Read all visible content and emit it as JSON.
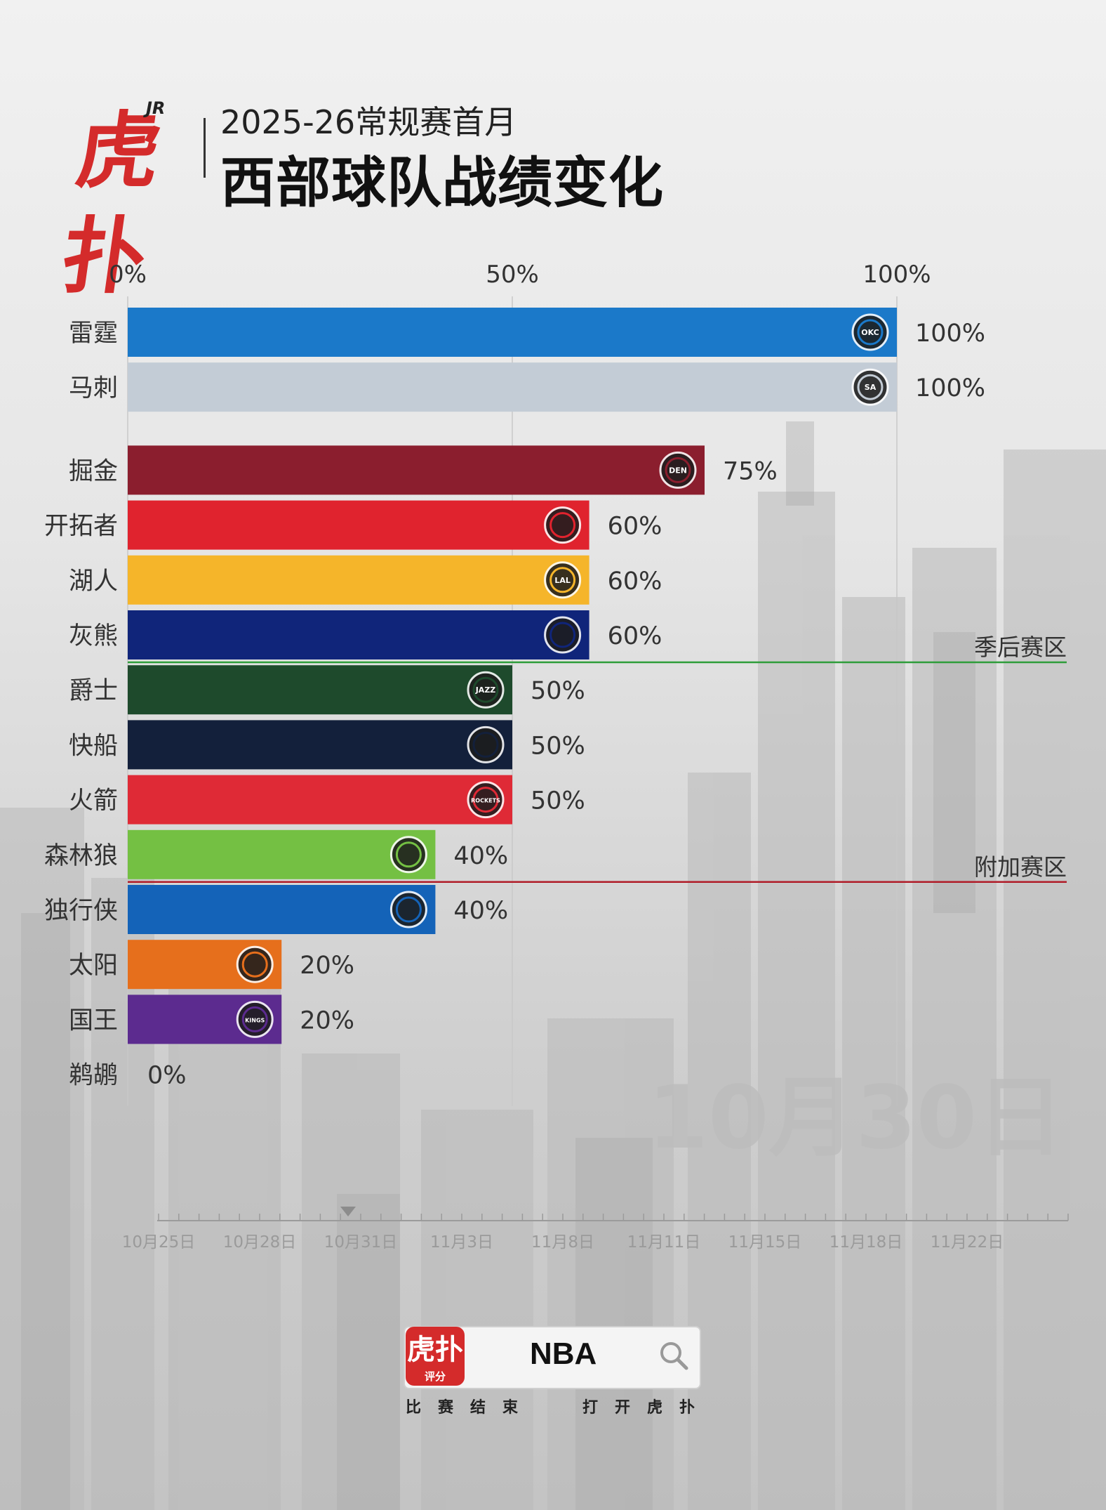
{
  "header": {
    "logo_text": "虎扑",
    "logo_badge": "JR",
    "subtitle": "2025-26常规赛首月",
    "title": "西部球队战绩变化"
  },
  "colors": {
    "brand_red": "#d42b2b",
    "playoff_line": "#2e9d3a",
    "playin_line": "#b01c28"
  },
  "chart_data": {
    "type": "bar",
    "orientation": "horizontal",
    "unit": "%",
    "xlim": [
      0,
      100
    ],
    "x_ticks": [
      "0%",
      "50%",
      "100%"
    ],
    "categories": [
      "雷霆",
      "马刺",
      "掘金",
      "开拓者",
      "湖人",
      "灰熊",
      "爵士",
      "快船",
      "火箭",
      "森林狼",
      "独行侠",
      "太阳",
      "国王",
      "鹈鹕"
    ],
    "values": [
      100,
      100,
      75,
      60,
      60,
      60,
      50,
      50,
      50,
      40,
      40,
      20,
      20,
      0
    ],
    "value_labels": [
      "100%",
      "100%",
      "75%",
      "60%",
      "60%",
      "60%",
      "50%",
      "50%",
      "50%",
      "40%",
      "40%",
      "20%",
      "20%",
      "0%"
    ],
    "colors": [
      "#1b79c9",
      "#c3ccd6",
      "#8b1e2e",
      "#e0232e",
      "#f5b52a",
      "#10257a",
      "#1e4a2c",
      "#13203b",
      "#df2a36",
      "#74c043",
      "#1463b8",
      "#e66f1c",
      "#5c2b8f",
      "#c0c0c0"
    ],
    "team_logo_icons": [
      "okc-logo-icon",
      "spurs-logo-icon",
      "nuggets-logo-icon",
      "blazers-logo-icon",
      "lakers-logo-icon",
      "grizzlies-logo-icon",
      "jazz-logo-icon",
      "clippers-logo-icon",
      "rockets-logo-icon",
      "wolves-logo-icon",
      "mavs-logo-icon",
      "suns-logo-icon",
      "kings-logo-icon",
      "pelicans-logo-icon"
    ],
    "logo_texts": [
      "OKC",
      "SA",
      "DEN",
      "",
      "LAL",
      "",
      "JAZZ",
      "",
      "ROCKETS",
      "",
      "",
      "",
      "KINGS",
      ""
    ],
    "zone_lines": [
      {
        "label": "季后赛区",
        "after_rank": 6,
        "color": "#2e9d3a"
      },
      {
        "label": "附加赛区",
        "after_rank": 10,
        "color": "#b01c28"
      }
    ],
    "current_date": "10月30日"
  },
  "timeline": {
    "ticks": [
      "10月25日",
      "10月28日",
      "10月31日",
      "11月3日",
      "11月8日",
      "11月11日",
      "11月15日",
      "11月18日",
      "11月22日"
    ]
  },
  "footer": {
    "app_icon_text": "虎扑",
    "app_icon_sub": "评分",
    "search_text": "NBA",
    "hint_left": "比赛结束",
    "hint_right": "打开虎扑"
  }
}
